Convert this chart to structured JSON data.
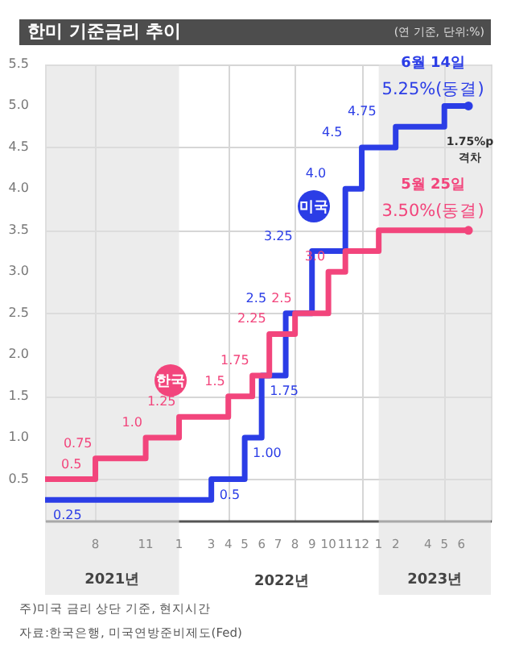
{
  "chart_data": {
    "type": "step",
    "title": "한미 기준금리 추이",
    "subtitle": "(연 기준, 단위:%)",
    "series": [
      {
        "name": "미국",
        "color": "#2b3de6",
        "x": [
          "2021-05-01",
          "2022-03-01",
          "2022-05-01",
          "2022-06-01",
          "2022-07-15",
          "2022-09-01",
          "2022-11-01",
          "2022-12-01",
          "2023-02-01",
          "2023-05-01",
          "2023-06-14"
        ],
        "values": [
          0.25,
          0.5,
          1.0,
          1.75,
          2.5,
          3.25,
          4.0,
          4.5,
          4.75,
          5.0,
          5.0
        ],
        "value_labels": [
          "0.25",
          "0.5",
          "1.00",
          "1.75",
          "2.5",
          "3.25",
          "4.0",
          "4.5",
          "4.75",
          null,
          null
        ]
      },
      {
        "name": "한국",
        "color": "#f2457c",
        "x": [
          "2021-05-01",
          "2021-08-01",
          "2021-11-01",
          "2022-01-01",
          "2022-04-01",
          "2022-05-15",
          "2022-06-15",
          "2022-08-01",
          "2022-10-01",
          "2022-11-01",
          "2023-01-01",
          "2023-06-14"
        ],
        "values": [
          0.5,
          0.75,
          1.0,
          1.25,
          1.5,
          1.75,
          2.25,
          2.5,
          3.0,
          3.25,
          3.5,
          3.5
        ],
        "value_labels": [
          "0.5",
          "0.75",
          "1.0",
          "1.25",
          "1.5",
          "1.75",
          "2.25",
          "2.5",
          "3.0",
          null,
          null,
          null
        ]
      }
    ],
    "xlim": [
      "2021-05-01",
      "2023-07-25"
    ],
    "xticks": [
      {
        "value": "2021-08-01",
        "label": "8"
      },
      {
        "value": "2021-11-01",
        "label": "11"
      },
      {
        "value": "2022-01-01",
        "label": "1"
      },
      {
        "value": "2022-03-01",
        "label": "3"
      },
      {
        "value": "2022-04-01",
        "label": "4"
      },
      {
        "value": "2022-05-01",
        "label": "5"
      },
      {
        "value": "2022-06-01",
        "label": "6"
      },
      {
        "value": "2022-07-01",
        "label": "7"
      },
      {
        "value": "2022-08-01",
        "label": "8"
      },
      {
        "value": "2022-09-01",
        "label": "9"
      },
      {
        "value": "2022-10-01",
        "label": "10"
      },
      {
        "value": "2022-11-01",
        "label": "11"
      },
      {
        "value": "2022-12-01",
        "label": "12"
      },
      {
        "value": "2023-01-01",
        "label": "1"
      },
      {
        "value": "2023-02-01",
        "label": "2"
      },
      {
        "value": "2023-04-01",
        "label": "4"
      },
      {
        "value": "2023-05-01",
        "label": "5"
      },
      {
        "value": "2023-06-01",
        "label": "6"
      }
    ],
    "ylim": [
      0,
      5.5
    ],
    "yticks": [
      0.5,
      {
        "value": 1,
        "label": "1.0"
      },
      1.5,
      {
        "value": 2,
        "label": "2.0"
      },
      2.5,
      {
        "value": 3,
        "label": "3.0"
      },
      3.5,
      {
        "value": 4,
        "label": "4.0"
      },
      4.5,
      {
        "value": 5,
        "label": "5.0"
      },
      5.5
    ],
    "grid": true,
    "bands": [
      {
        "axis": "x",
        "from": "2021-05-01",
        "to": "2022-01-01",
        "label": "2021년",
        "color": "#e0e0e0"
      },
      {
        "axis": "x",
        "from": "2023-01-01",
        "to": "2023-07-25",
        "label": "2023년",
        "color": "#e0e0e0"
      }
    ],
    "annotations": [
      {
        "text": "6월 14일",
        "x": "2023-06-14",
        "y": 5.0
      },
      {
        "text": "5.25%(동결)",
        "x": "2023-06-14",
        "y": 5.0
      },
      {
        "text": "5월 25일",
        "x": "2023-06-14",
        "y": 3.5
      },
      {
        "text": "3.50%(동결)",
        "x": "2023-06-14",
        "y": 3.5
      },
      "1.75%p 격차",
      "2022년",
      "주)미국 금리 상단 기준, 현지시간",
      "자료:한국은행, 미국연방준비제도(Fed)"
    ]
  }
}
